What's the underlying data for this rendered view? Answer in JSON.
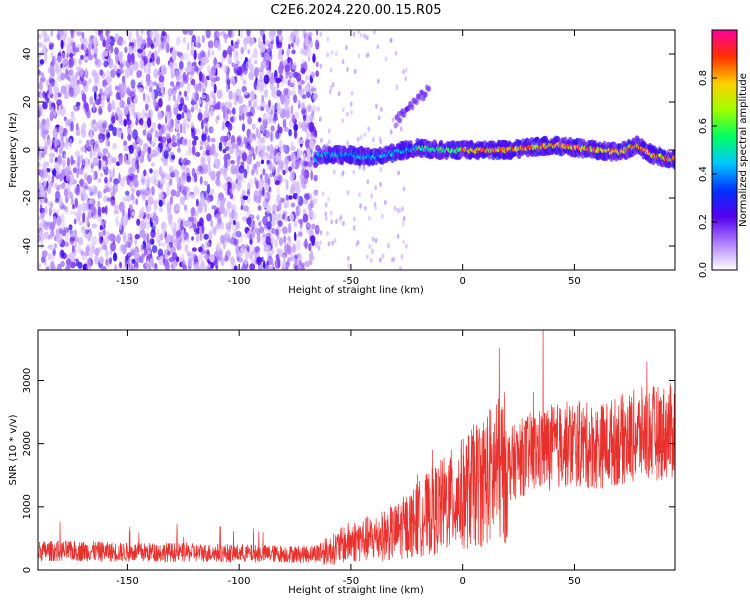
{
  "title": "C2E6.2024.220.00.15.R05",
  "colors": {
    "scatter_background": "#8a3cf0",
    "snr_line": "#e8302c",
    "colorbar_stops": [
      "#ffffff",
      "#b080ff",
      "#5500ee",
      "#0033ff",
      "#00c8ff",
      "#00ff60",
      "#a0ff00",
      "#ffd000",
      "#ff3000",
      "#ff00a0"
    ]
  },
  "chart_data": [
    {
      "type": "heatmap",
      "name": "spectrogram",
      "xlabel": "Height of straight line (km)",
      "ylabel": "Frequency (Hz)",
      "xlim": [
        -190,
        95
      ],
      "ylim": [
        -50,
        50
      ],
      "xticks": [
        -150,
        -100,
        -50,
        0,
        50
      ],
      "yticks": [
        -40,
        -20,
        0,
        20,
        40
      ],
      "colorbar": {
        "label": "Normalized spectral amplitude",
        "range": [
          0.0,
          1.0
        ],
        "ticks": [
          0.0,
          0.2,
          0.4,
          0.6,
          0.8
        ]
      },
      "ridge": {
        "description_points_x_km": [
          -65,
          -50,
          -40,
          -30,
          -20,
          -10,
          0,
          10,
          20,
          30,
          40,
          50,
          60,
          70,
          78,
          85,
          95
        ],
        "frequency_hz": [
          -2,
          -2,
          -3,
          -1,
          1,
          0,
          0,
          0,
          0,
          1,
          2,
          1,
          0,
          -1,
          2,
          -2,
          -4
        ]
      }
    },
    {
      "type": "line",
      "name": "snr",
      "xlabel": "Height of straight line (km)",
      "ylabel": "SNR (10 * v/v)",
      "xlim": [
        -190,
        95
      ],
      "ylim": [
        0,
        3800
      ],
      "xticks": [
        -150,
        -100,
        -50,
        0,
        50
      ],
      "yticks": [
        0,
        1000,
        2000,
        3000
      ],
      "series": [
        {
          "x": [
            -190,
            -170,
            -150,
            -130,
            -110,
            -90,
            -70,
            -60,
            -50,
            -40,
            -30,
            -20,
            -10,
            0,
            10,
            20,
            30,
            40,
            50,
            60,
            70,
            80,
            95
          ],
          "y": [
            300,
            300,
            280,
            280,
            270,
            260,
            250,
            300,
            450,
            500,
            600,
            800,
            1000,
            1200,
            1450,
            1650,
            1850,
            1950,
            2000,
            1950,
            2050,
            2150,
            2200
          ]
        }
      ]
    }
  ]
}
